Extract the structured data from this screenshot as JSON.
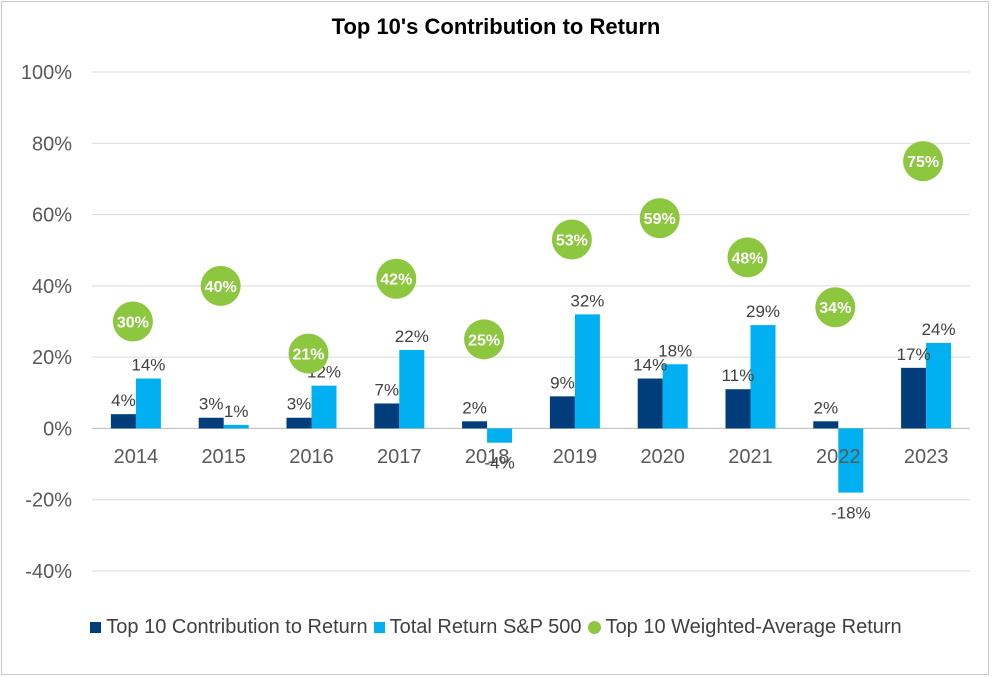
{
  "chart_data": {
    "type": "bar",
    "title": "Top 10's Contribution to Return",
    "categories": [
      "2014",
      "2015",
      "2016",
      "2017",
      "2018",
      "2019",
      "2020",
      "2021",
      "2022",
      "2023"
    ],
    "series": [
      {
        "name": "Top 10 Contribution to Return",
        "kind": "bar",
        "color": "#003d7a",
        "values": [
          4,
          3,
          3,
          7,
          2,
          9,
          14,
          11,
          2,
          17
        ],
        "labels": [
          "4%",
          "3%",
          "3%",
          "7%",
          "2%",
          "9%",
          "14%",
          "11%",
          "2%",
          "17%"
        ]
      },
      {
        "name": "Total Return S&P 500",
        "kind": "bar",
        "color": "#00b0f0",
        "values": [
          14,
          1,
          12,
          22,
          -4,
          32,
          18,
          29,
          -18,
          24
        ],
        "labels": [
          "14%",
          "1%",
          "12%",
          "22%",
          "-4%",
          "32%",
          "18%",
          "29%",
          "-18%",
          "24%"
        ]
      },
      {
        "name": "Top 10 Weighted-Average Return",
        "kind": "scatter",
        "color": "#8dc63f",
        "values": [
          30,
          40,
          21,
          42,
          25,
          53,
          59,
          48,
          34,
          75
        ],
        "labels": [
          "30%",
          "40%",
          "21%",
          "42%",
          "25%",
          "53%",
          "59%",
          "48%",
          "34%",
          "75%"
        ]
      }
    ],
    "ylim": [
      -40,
      100
    ],
    "yticks": [
      -40,
      -20,
      0,
      20,
      40,
      60,
      80,
      100
    ],
    "ytick_labels": [
      "-40%",
      "-20%",
      "0%",
      "20%",
      "40%",
      "60%",
      "80%",
      "100%"
    ],
    "grid": true,
    "legend_position": "bottom"
  }
}
